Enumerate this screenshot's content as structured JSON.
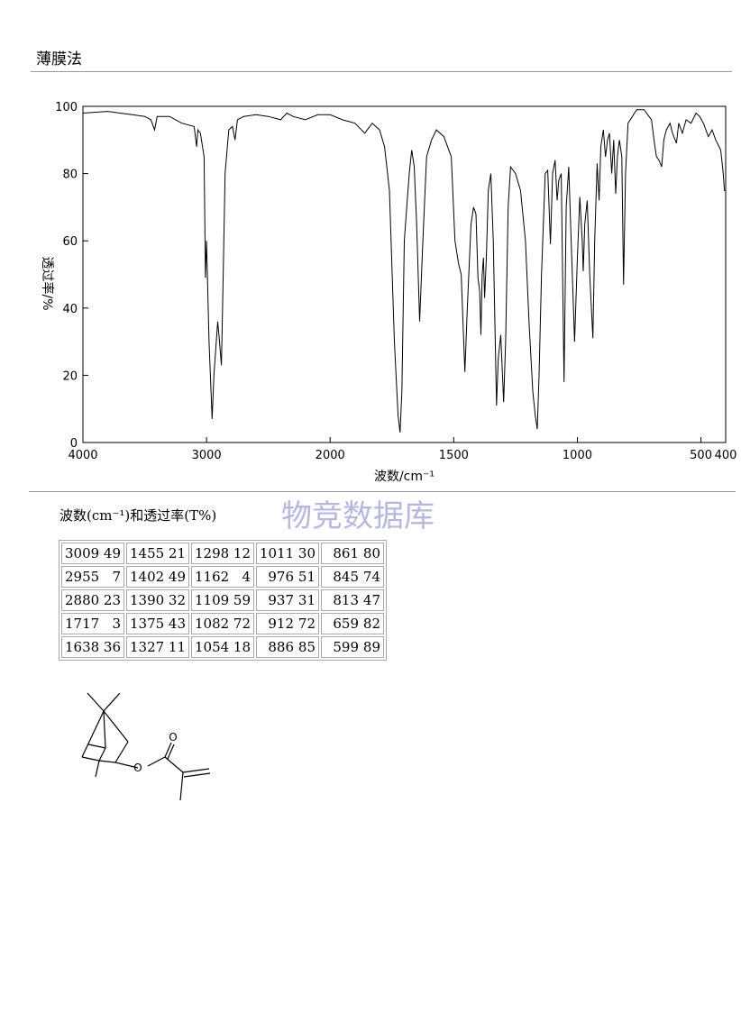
{
  "header": {
    "title": "薄膜法"
  },
  "chart_data": {
    "type": "line",
    "xlabel": "波数/cm⁻¹",
    "ylabel": "透过率/%",
    "xlim": [
      4000,
      400
    ],
    "ylim": [
      0,
      100
    ],
    "x_scale_change": {
      "at": 2000,
      "factor": 2
    },
    "xticks": [
      4000,
      3000,
      2000,
      1500,
      1000,
      500,
      400
    ],
    "yticks": [
      0,
      20,
      40,
      60,
      80,
      100
    ],
    "color": "#000000",
    "x": [
      4000,
      3800,
      3700,
      3600,
      3500,
      3450,
      3420,
      3400,
      3300,
      3200,
      3100,
      3080,
      3070,
      3050,
      3020,
      3009,
      3000,
      2980,
      2955,
      2940,
      2910,
      2895,
      2880,
      2870,
      2850,
      2820,
      2790,
      2770,
      2750,
      2700,
      2600,
      2500,
      2400,
      2350,
      2300,
      2200,
      2100,
      2000,
      1950,
      1900,
      1860,
      1830,
      1800,
      1780,
      1760,
      1740,
      1725,
      1717,
      1710,
      1700,
      1690,
      1680,
      1670,
      1660,
      1650,
      1638,
      1625,
      1610,
      1590,
      1570,
      1540,
      1510,
      1495,
      1480,
      1470,
      1455,
      1445,
      1430,
      1420,
      1410,
      1402,
      1395,
      1390,
      1385,
      1380,
      1375,
      1368,
      1360,
      1350,
      1340,
      1327,
      1320,
      1310,
      1298,
      1290,
      1280,
      1270,
      1250,
      1230,
      1210,
      1195,
      1180,
      1170,
      1162,
      1155,
      1145,
      1130,
      1120,
      1109,
      1100,
      1090,
      1082,
      1075,
      1065,
      1054,
      1045,
      1035,
      1025,
      1011,
      1000,
      990,
      980,
      976,
      970,
      960,
      950,
      937,
      930,
      920,
      912,
      905,
      895,
      886,
      878,
      870,
      861,
      853,
      845,
      838,
      830,
      820,
      813,
      805,
      795,
      760,
      730,
      720,
      700,
      690,
      680,
      670,
      659,
      650,
      640,
      625,
      615,
      599,
      590,
      575,
      560,
      540,
      520,
      505,
      490,
      470,
      455,
      440,
      420,
      410,
      405,
      400
    ],
    "values": [
      98,
      98.5,
      98,
      97.5,
      97,
      96,
      93,
      97,
      97,
      95,
      94,
      88,
      93,
      92,
      85,
      49,
      60,
      30,
      7,
      20,
      36,
      30,
      23,
      40,
      80,
      93,
      94,
      90,
      96,
      97,
      97.5,
      97,
      96,
      98,
      97,
      96,
      97.5,
      97.5,
      96,
      95,
      92,
      95,
      93,
      88,
      75,
      30,
      8,
      3,
      15,
      60,
      70,
      80,
      87,
      82,
      65,
      36,
      60,
      85,
      90,
      93,
      91,
      85,
      60,
      53,
      50,
      21,
      40,
      65,
      70,
      68,
      49,
      45,
      32,
      50,
      55,
      43,
      55,
      75,
      80,
      60,
      11,
      25,
      32,
      12,
      30,
      70,
      82,
      80,
      75,
      60,
      35,
      15,
      8,
      4,
      20,
      50,
      80,
      81,
      59,
      80,
      84,
      72,
      78,
      80,
      18,
      70,
      82,
      60,
      30,
      55,
      73,
      60,
      51,
      65,
      72,
      50,
      31,
      60,
      83,
      72,
      88,
      93,
      85,
      90,
      92,
      80,
      90,
      74,
      85,
      90,
      85,
      47,
      80,
      95,
      99,
      99,
      98,
      96,
      90,
      85,
      84,
      82,
      90,
      93,
      95,
      92,
      89,
      95,
      92,
      96,
      95,
      98,
      97,
      95,
      91,
      93,
      90,
      87,
      80,
      75,
      75
    ]
  },
  "peak_table": {
    "title": "波数(cm⁻¹)和透过率(T%)",
    "rows": [
      [
        [
          3009,
          49
        ],
        [
          1455,
          21
        ],
        [
          1298,
          12
        ],
        [
          1011,
          30
        ],
        [
          861,
          80
        ]
      ],
      [
        [
          2955,
          7
        ],
        [
          1402,
          49
        ],
        [
          1162,
          4
        ],
        [
          976,
          51
        ],
        [
          845,
          74
        ]
      ],
      [
        [
          2880,
          23
        ],
        [
          1390,
          32
        ],
        [
          1109,
          59
        ],
        [
          937,
          31
        ],
        [
          813,
          47
        ]
      ],
      [
        [
          1717,
          3
        ],
        [
          1375,
          43
        ],
        [
          1082,
          72
        ],
        [
          912,
          72
        ],
        [
          659,
          82
        ]
      ],
      [
        [
          1638,
          36
        ],
        [
          1327,
          11
        ],
        [
          1054,
          18
        ],
        [
          886,
          85
        ],
        [
          599,
          89
        ]
      ]
    ]
  },
  "watermark": "物竞数据库",
  "structure": {
    "atoms": [
      "O",
      "O"
    ]
  }
}
